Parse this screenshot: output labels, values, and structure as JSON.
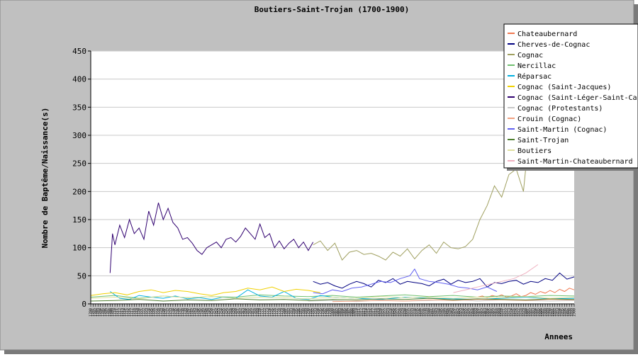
{
  "chart_data": {
    "type": "line",
    "title": "Boutiers-Saint-Trojan (1700-1900)",
    "xlabel": "Annees",
    "ylabel": "Nombre de Baptême/Naissance(s)",
    "xlim": [
      1700,
      1900
    ],
    "ylim": [
      0,
      450
    ],
    "y_ticks": [
      0,
      50,
      100,
      150,
      200,
      250,
      300,
      350,
      400,
      450
    ],
    "grid": true,
    "legend_position": "top-right",
    "series": [
      {
        "name": "Chateaubernard",
        "color": "#f07850",
        "x": [
          1860,
          1862,
          1864,
          1866,
          1868,
          1870,
          1872,
          1874,
          1876,
          1878,
          1880,
          1882,
          1884,
          1886,
          1888,
          1890,
          1892,
          1894,
          1896,
          1898,
          1900
        ],
        "values": [
          12,
          14,
          11,
          15,
          13,
          16,
          12,
          14,
          18,
          13,
          15,
          20,
          17,
          22,
          19,
          24,
          20,
          26,
          22,
          28,
          25
        ]
      },
      {
        "name": "Cherves-de-Cognac",
        "color": "#000080",
        "x": [
          1792,
          1795,
          1798,
          1801,
          1804,
          1807,
          1810,
          1813,
          1816,
          1819,
          1822,
          1825,
          1828,
          1831,
          1834,
          1837,
          1840,
          1843,
          1846,
          1849,
          1852,
          1855,
          1858,
          1861,
          1864,
          1867,
          1870,
          1873,
          1876,
          1879,
          1882,
          1885,
          1888,
          1891,
          1894,
          1897,
          1900
        ],
        "values": [
          40,
          35,
          38,
          32,
          28,
          35,
          40,
          36,
          30,
          42,
          38,
          45,
          35,
          40,
          38,
          36,
          32,
          40,
          44,
          35,
          42,
          38,
          40,
          45,
          30,
          38,
          36,
          40,
          42,
          35,
          40,
          38,
          45,
          42,
          55,
          44,
          48
        ]
      },
      {
        "name": "Cognac",
        "color": "#a0a060",
        "x": [
          1792,
          1795,
          1798,
          1801,
          1804,
          1807,
          1810,
          1813,
          1816,
          1819,
          1822,
          1825,
          1828,
          1831,
          1834,
          1837,
          1840,
          1843,
          1846,
          1849,
          1852,
          1855,
          1858,
          1861,
          1864,
          1867,
          1870,
          1873,
          1876,
          1879,
          1882,
          1885,
          1888
        ],
        "values": [
          105,
          112,
          95,
          108,
          78,
          92,
          95,
          88,
          90,
          85,
          78,
          92,
          85,
          98,
          80,
          95,
          105,
          90,
          110,
          100,
          98,
          102,
          115,
          150,
          175,
          210,
          190,
          230,
          240,
          200,
          330,
          300,
          290
        ]
      },
      {
        "name": "Nercillac",
        "color": "#70c070",
        "x": [
          1700,
          1710,
          1720,
          1730,
          1740,
          1750,
          1760,
          1770,
          1780,
          1790,
          1800,
          1810,
          1820,
          1830,
          1840,
          1850,
          1860,
          1870,
          1880,
          1890,
          1900
        ],
        "values": [
          12,
          15,
          10,
          14,
          11,
          13,
          12,
          16,
          14,
          13,
          15,
          12,
          14,
          16,
          13,
          15,
          12,
          14,
          13,
          15,
          14
        ]
      },
      {
        "name": "Réparsac",
        "color": "#00b0e0",
        "x": [
          1708,
          1712,
          1716,
          1720,
          1725,
          1730,
          1735,
          1740,
          1745,
          1750,
          1755,
          1760,
          1765,
          1770,
          1775,
          1780,
          1785,
          1790,
          1795,
          1800,
          1810,
          1820,
          1830,
          1840,
          1850,
          1860,
          1870,
          1880,
          1890,
          1900
        ],
        "values": [
          22,
          10,
          8,
          15,
          12,
          10,
          14,
          9,
          11,
          8,
          12,
          10,
          25,
          14,
          12,
          22,
          10,
          8,
          15,
          12,
          10,
          8,
          12,
          10,
          9,
          8,
          10,
          12,
          9,
          10
        ]
      },
      {
        "name": "Cognac (Saint-Jacques)",
        "color": "#f0d000",
        "x": [
          1700,
          1705,
          1710,
          1715,
          1720,
          1725,
          1730,
          1735,
          1740,
          1745,
          1750,
          1755,
          1760,
          1765,
          1770,
          1775,
          1780,
          1785,
          1790,
          1795
        ],
        "values": [
          15,
          18,
          20,
          16,
          22,
          25,
          20,
          24,
          22,
          18,
          15,
          20,
          22,
          28,
          25,
          30,
          22,
          26,
          24,
          20
        ]
      },
      {
        "name": "Cognac (Saint-Léger-Saint-Cap",
        "color": "#300070",
        "x": [
          1708,
          1709,
          1710,
          1712,
          1714,
          1716,
          1718,
          1720,
          1722,
          1724,
          1726,
          1728,
          1730,
          1732,
          1734,
          1736,
          1738,
          1740,
          1742,
          1744,
          1746,
          1748,
          1750,
          1752,
          1754,
          1756,
          1758,
          1760,
          1762,
          1764,
          1766,
          1768,
          1770,
          1772,
          1774,
          1776,
          1778,
          1780,
          1782,
          1784,
          1786,
          1788,
          1790,
          1792
        ],
        "values": [
          55,
          125,
          105,
          140,
          118,
          150,
          125,
          135,
          115,
          165,
          140,
          180,
          150,
          170,
          145,
          135,
          115,
          118,
          108,
          95,
          88,
          100,
          105,
          110,
          100,
          115,
          118,
          110,
          120,
          135,
          125,
          115,
          142,
          118,
          125,
          100,
          112,
          98,
          108,
          115,
          100,
          110,
          95,
          110
        ]
      },
      {
        "name": "Cognac (Protestants)",
        "color": "#c8c8c8",
        "x": [
          1790,
          1800,
          1810,
          1820,
          1830,
          1840,
          1850,
          1860,
          1870,
          1880,
          1890,
          1900
        ],
        "values": [
          5,
          6,
          4,
          7,
          5,
          6,
          8,
          5,
          7,
          6,
          5,
          6
        ]
      },
      {
        "name": "Crouin (Cognac)",
        "color": "#f0a080",
        "x": [
          1800,
          1810,
          1820,
          1830,
          1840,
          1850,
          1860,
          1870,
          1880,
          1890,
          1900
        ],
        "values": [
          4,
          5,
          6,
          5,
          7,
          6,
          8,
          7,
          6,
          8,
          7
        ]
      },
      {
        "name": "Saint-Martin (Cognac)",
        "color": "#6060f0",
        "x": [
          1792,
          1796,
          1800,
          1804,
          1808,
          1812,
          1816,
          1820,
          1824,
          1828,
          1832,
          1834,
          1836,
          1840,
          1844,
          1848,
          1852,
          1856,
          1860,
          1864,
          1868
        ],
        "values": [
          20,
          18,
          25,
          22,
          28,
          30,
          35,
          40,
          38,
          45,
          50,
          62,
          45,
          40,
          38,
          35,
          30,
          28,
          25,
          30,
          22
        ]
      },
      {
        "name": "Saint-Trojan",
        "color": "#508030",
        "x": [
          1700,
          1710,
          1720,
          1730,
          1740,
          1750,
          1760,
          1770,
          1780,
          1790,
          1800,
          1810,
          1820,
          1830,
          1840,
          1850,
          1860,
          1870,
          1880,
          1890,
          1900
        ],
        "values": [
          5,
          6,
          8,
          5,
          7,
          6,
          9,
          7,
          8,
          6,
          8,
          7,
          9,
          8,
          10,
          7,
          9,
          8,
          7,
          9,
          8
        ]
      },
      {
        "name": "Boutiers",
        "color": "#e0e0a0",
        "x": [
          1700,
          1710,
          1720,
          1730,
          1740,
          1750,
          1760,
          1770,
          1780,
          1790,
          1800,
          1810,
          1820,
          1830,
          1840,
          1850,
          1860,
          1870,
          1880,
          1890,
          1900
        ],
        "values": [
          10,
          12,
          9,
          14,
          11,
          13,
          10,
          12,
          11,
          9,
          12,
          10,
          13,
          11,
          12,
          10,
          12,
          11,
          13,
          10,
          12
        ]
      },
      {
        "name": "Saint-Martin-Chateaubernard",
        "color": "#f0b0c0",
        "x": [
          1850,
          1855,
          1860,
          1865,
          1870,
          1875,
          1880,
          1885
        ],
        "values": [
          20,
          25,
          30,
          35,
          40,
          45,
          55,
          70
        ]
      }
    ]
  }
}
